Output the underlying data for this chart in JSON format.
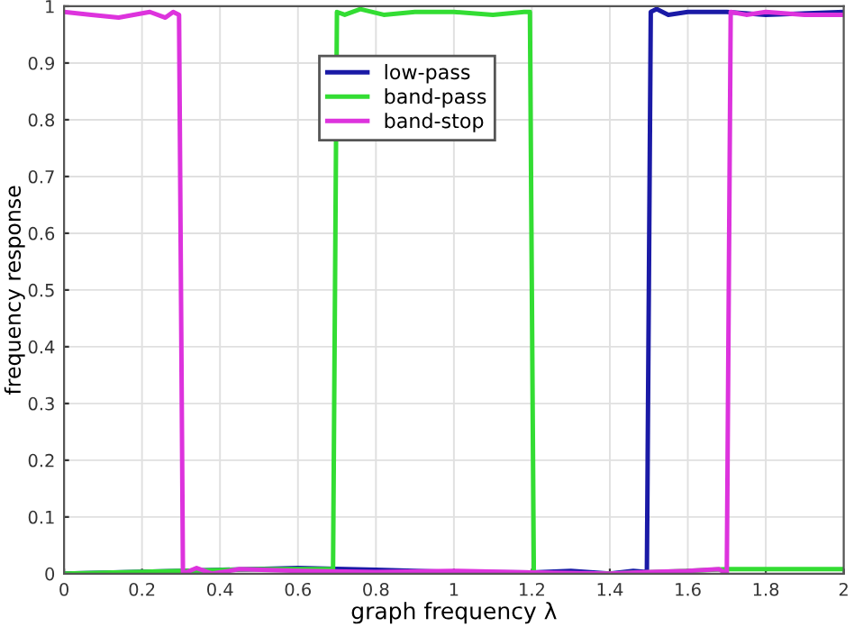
{
  "chart_data": {
    "type": "line",
    "xlabel": "graph frequency λ",
    "ylabel": "frequency response",
    "xlim": [
      0,
      2
    ],
    "xticks": [
      0,
      0.2,
      0.4,
      0.6,
      0.8,
      1,
      1.2,
      1.4,
      1.6,
      1.8,
      2
    ],
    "ylim": [
      0,
      1
    ],
    "yticks": [
      0,
      0.1,
      0.2,
      0.3,
      0.4,
      0.5,
      0.6,
      0.7,
      0.8,
      0.9,
      1
    ],
    "grid": true,
    "legend": "top",
    "marker": "none",
    "line_style": "solid",
    "series": [
      {
        "name": "low-pass",
        "color": "#1a1aa6",
        "x": [
          0,
          0.3,
          0.6,
          0.8,
          1.0,
          1.2,
          1.3,
          1.4,
          1.46,
          1.495,
          1.505,
          1.52,
          1.55,
          1.6,
          1.7,
          1.8,
          2.0
        ],
        "values": [
          0.0,
          0.005,
          0.01,
          0.007,
          0.003,
          0.002,
          0.005,
          0.0,
          0.005,
          0.003,
          0.99,
          0.995,
          0.985,
          0.99,
          0.99,
          0.985,
          0.99
        ]
      },
      {
        "name": "band-pass",
        "color": "#33dd33",
        "x": [
          0,
          0.3,
          0.5,
          0.69,
          0.7,
          0.72,
          0.76,
          0.82,
          0.9,
          1.0,
          1.1,
          1.18,
          1.195,
          1.205,
          1.4,
          1.6,
          1.7,
          1.8,
          2.0
        ],
        "values": [
          0.0,
          0.005,
          0.008,
          0.008,
          0.99,
          0.985,
          0.995,
          0.985,
          0.99,
          0.99,
          0.985,
          0.99,
          0.99,
          0.0,
          0.0,
          0.005,
          0.008,
          0.008,
          0.008
        ]
      },
      {
        "name": "band-stop",
        "color": "#dd33dd",
        "x": [
          0,
          0.07,
          0.14,
          0.22,
          0.26,
          0.28,
          0.295,
          0.305,
          0.34,
          0.38,
          0.45,
          0.6,
          0.8,
          1.0,
          1.2,
          1.4,
          1.5,
          1.6,
          1.68,
          1.7,
          1.71,
          1.75,
          1.8,
          1.9,
          2.0
        ],
        "values": [
          0.99,
          0.985,
          0.98,
          0.99,
          0.98,
          0.99,
          0.985,
          0.0,
          0.01,
          0.0,
          0.008,
          0.005,
          0.003,
          0.005,
          0.002,
          0.0,
          0.003,
          0.005,
          0.008,
          0.0,
          0.99,
          0.985,
          0.99,
          0.985,
          0.985
        ]
      }
    ]
  }
}
